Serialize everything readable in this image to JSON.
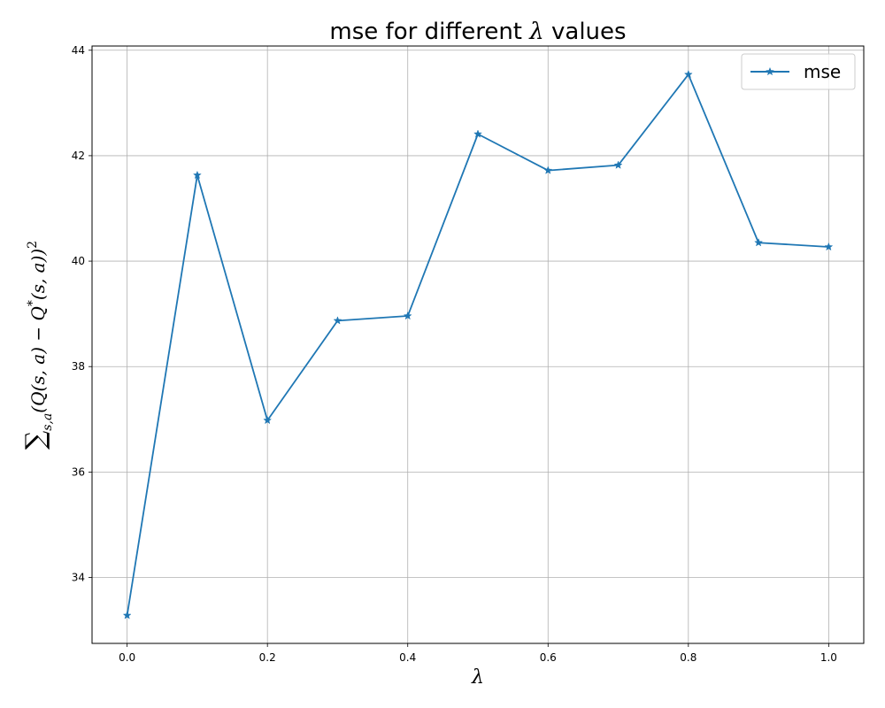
{
  "chart_data": {
    "type": "line",
    "title_prefix": "mse for different ",
    "title_symbol": "λ",
    "title_suffix": " values",
    "xlabel": "λ",
    "ylabel_sum": "∑",
    "ylabel_sub": "s,a",
    "ylabel_body": "(Q(s, a) − Q",
    "ylabel_star": "*",
    "ylabel_tail": "(s, a))",
    "ylabel_pow": "2",
    "x": [
      0.0,
      0.1,
      0.2,
      0.3,
      0.4,
      0.5,
      0.6,
      0.7,
      0.8,
      0.9,
      1.0
    ],
    "series": [
      {
        "name": "mse",
        "values": [
          33.28,
          41.63,
          36.98,
          38.87,
          38.96,
          42.41,
          41.72,
          41.82,
          43.54,
          40.35,
          40.27
        ],
        "color": "#1f77b4",
        "marker": "star"
      }
    ],
    "xlim": [
      -0.05,
      1.05
    ],
    "ylim": [
      32.75,
      44.08
    ],
    "xticks": [
      "0.0",
      "0.2",
      "0.4",
      "0.6",
      "0.8",
      "1.0"
    ],
    "xtick_values": [
      0.0,
      0.2,
      0.4,
      0.6,
      0.8,
      1.0
    ],
    "yticks": [
      "34",
      "36",
      "38",
      "40",
      "42",
      "44"
    ],
    "ytick_values": [
      34,
      36,
      38,
      40,
      42,
      44
    ],
    "grid": true,
    "legend_position": "top-right"
  }
}
